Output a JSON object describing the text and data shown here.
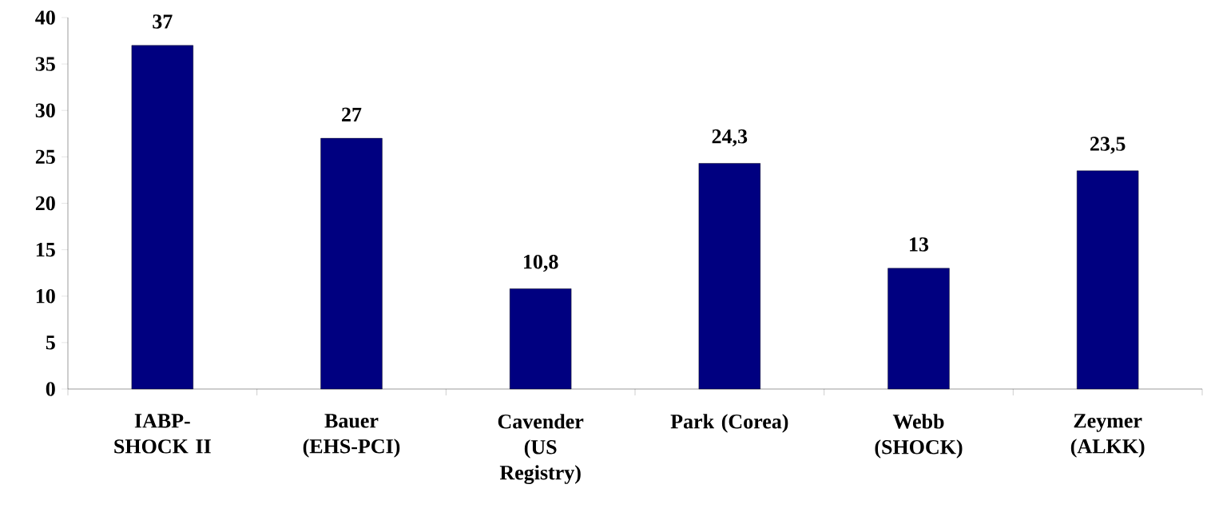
{
  "chart_data": {
    "type": "bar",
    "categories": [
      "IABP-SHOCK II",
      "Bauer (EHS-PCI)",
      "Cavender (US Registry)",
      "Park (Corea)",
      "Webb (SHOCK)",
      "Zeymer (ALKK)"
    ],
    "values": [
      37,
      27,
      10.8,
      24.3,
      13,
      23.5
    ],
    "value_labels": [
      "37",
      "27",
      "10,8",
      "24,3",
      "13",
      "23,5"
    ],
    "color": "#000080",
    "ylim": [
      0,
      40
    ],
    "yticks": [
      0,
      5,
      10,
      15,
      20,
      25,
      30,
      35,
      40
    ],
    "grid": false
  }
}
